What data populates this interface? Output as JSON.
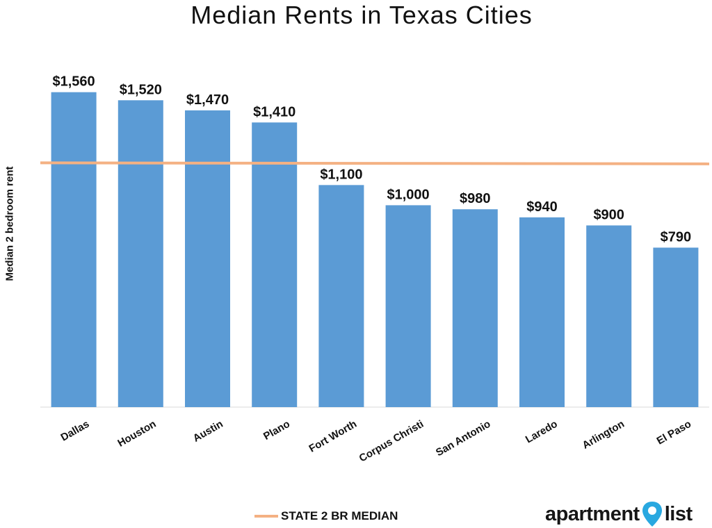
{
  "chart_data": {
    "type": "bar",
    "title": "Median Rents in Texas Cities",
    "xlabel": "",
    "ylabel": "Median 2 bedroom rent",
    "categories": [
      "Dallas",
      "Houston",
      "Austin",
      "Plano",
      "Fort Worth",
      "Corpus Christi",
      "San Antonio",
      "Laredo",
      "Arlington",
      "El Paso"
    ],
    "values": [
      1560,
      1520,
      1470,
      1410,
      1100,
      1000,
      980,
      940,
      900,
      790
    ],
    "data_labels": [
      "$1,560",
      "$1,520",
      "$1,470",
      "$1,410",
      "$1,100",
      "$1,000",
      "$980",
      "$940",
      "$900",
      "$790"
    ],
    "reference_line": {
      "name": "STATE 2 BR MEDIAN",
      "value": 1210
    },
    "ylim": [
      0,
      1700
    ],
    "grid": false,
    "legend": "bottom",
    "colors": {
      "bar": "#5b9bd5",
      "reference_line": "#f4b183"
    }
  },
  "branding": {
    "logo_left": "apartment",
    "logo_right": "list",
    "pin_color": "#29a8e0"
  }
}
